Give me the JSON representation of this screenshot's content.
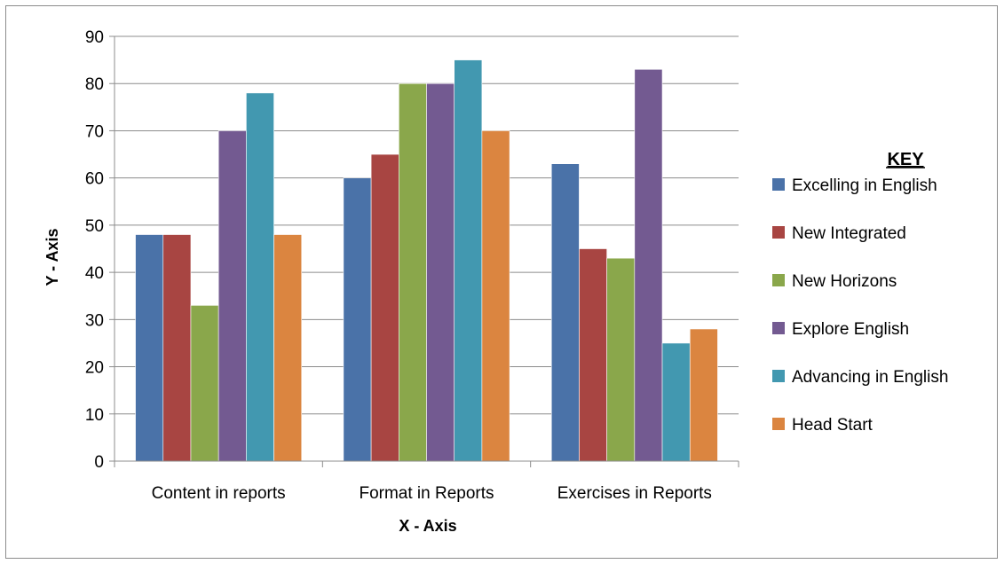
{
  "chart_data": {
    "type": "bar",
    "title": "",
    "xlabel": "X - Axis",
    "ylabel": "Y - Axis",
    "ylim": [
      0,
      90
    ],
    "yticks": [
      0,
      10,
      20,
      30,
      40,
      50,
      60,
      70,
      80,
      90
    ],
    "grid": true,
    "legend_title": "KEY",
    "legend_position": "right",
    "categories": [
      "Content in reports",
      "Format in Reports",
      "Exercises in Reports"
    ],
    "series": [
      {
        "name": "Excelling in English",
        "color": "#4a72a8",
        "values": [
          48,
          60,
          63
        ]
      },
      {
        "name": "New Integrated",
        "color": "#a84542",
        "values": [
          48,
          65,
          45
        ]
      },
      {
        "name": "New Horizons",
        "color": "#8aa74b",
        "values": [
          33,
          80,
          43
        ]
      },
      {
        "name": "Explore English",
        "color": "#735a91",
        "values": [
          70,
          80,
          83
        ]
      },
      {
        "name": "Advancing in English",
        "color": "#4298b0",
        "values": [
          78,
          85,
          25
        ]
      },
      {
        "name": "Head Start",
        "color": "#db8540",
        "values": [
          48,
          70,
          28
        ]
      }
    ]
  }
}
